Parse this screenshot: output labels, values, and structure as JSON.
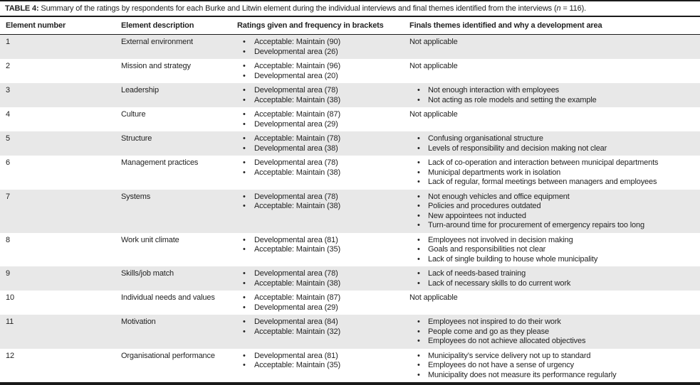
{
  "table": {
    "label": "TABLE 4:",
    "title": " Summary of the ratings by respondents for each Burke and Litwin element during the individual interviews and final themes identified from the interviews (",
    "n_symbol": "n",
    "title_suffix": " = 116).",
    "bullet_glyph": "•",
    "columns": [
      "Element number",
      "Element description",
      "Ratings given and frequency in brackets",
      "Finals themes identified and why a development area"
    ],
    "rows": [
      {
        "number": "1",
        "description": "External environment",
        "ratings": [
          "Acceptable: Maintain (90)",
          "Developmental area (26)"
        ],
        "themes": "Not applicable"
      },
      {
        "number": "2",
        "description": "Mission and strategy",
        "ratings": [
          "Acceptable: Maintain (96)",
          "Developmental area (20)"
        ],
        "themes": "Not applicable"
      },
      {
        "number": "3",
        "description": "Leadership",
        "ratings": [
          "Developmental area (78)",
          "Acceptable: Maintain (38)"
        ],
        "themes": [
          "Not enough interaction with employees",
          "Not acting as role models and setting the example"
        ]
      },
      {
        "number": "4",
        "description": "Culture",
        "ratings": [
          "Acceptable: Maintain (87)",
          "Developmental area (29)"
        ],
        "themes": "Not applicable"
      },
      {
        "number": "5",
        "description": "Structure",
        "ratings": [
          "Acceptable: Maintain (78)",
          "Developmental area (38)"
        ],
        "themes": [
          "Confusing organisational structure",
          "Levels of responsibility and decision making not clear"
        ]
      },
      {
        "number": "6",
        "description": "Management practices",
        "ratings": [
          "Developmental area (78)",
          "Acceptable: Maintain (38)"
        ],
        "themes": [
          "Lack of co-operation and interaction between municipal departments",
          "Municipal departments work in isolation",
          "Lack of regular, formal meetings between managers and employees"
        ]
      },
      {
        "number": "7",
        "description": "Systems",
        "ratings": [
          "Developmental area (78)",
          "Acceptable: Maintain (38)"
        ],
        "themes": [
          "Not enough vehicles and office equipment",
          "Policies and procedures outdated",
          "New appointees not inducted",
          "Turn-around time for procurement of emergency repairs too long"
        ]
      },
      {
        "number": "8",
        "description": "Work unit climate",
        "ratings": [
          "Developmental area (81)",
          "Acceptable: Maintain (35)"
        ],
        "themes": [
          "Employees not involved in decision making",
          "Goals and responsibilities not clear",
          "Lack of single building to house whole municipality"
        ]
      },
      {
        "number": "9",
        "description": "Skills/job match",
        "ratings": [
          "Developmental area (78)",
          "Acceptable: Maintain (38)"
        ],
        "themes": [
          "Lack of needs-based training",
          "Lack of necessary skills to do current work"
        ]
      },
      {
        "number": "10",
        "description": "Individual needs and values",
        "ratings": [
          "Acceptable: Maintain (87)",
          "Developmental area (29)"
        ],
        "themes": "Not applicable"
      },
      {
        "number": "11",
        "description": "Motivation",
        "ratings": [
          "Developmental area (84)",
          "Acceptable: Maintain (32)"
        ],
        "themes": [
          "Employees not inspired to do their work",
          "People come and go as they please",
          "Employees do not achieve allocated objectives"
        ]
      },
      {
        "number": "12",
        "description": "Organisational performance",
        "ratings": [
          "Developmental area (81)",
          "Acceptable: Maintain (35)"
        ],
        "themes": [
          "Municipality’s service delivery not up to standard",
          "Employees do not have a sense of urgency",
          "Municipality does not measure its performance regularly"
        ]
      }
    ]
  },
  "colors": {
    "row_alt_bg": "#e8e8e8",
    "rule": "#1a1a1a",
    "text": "#232323"
  }
}
